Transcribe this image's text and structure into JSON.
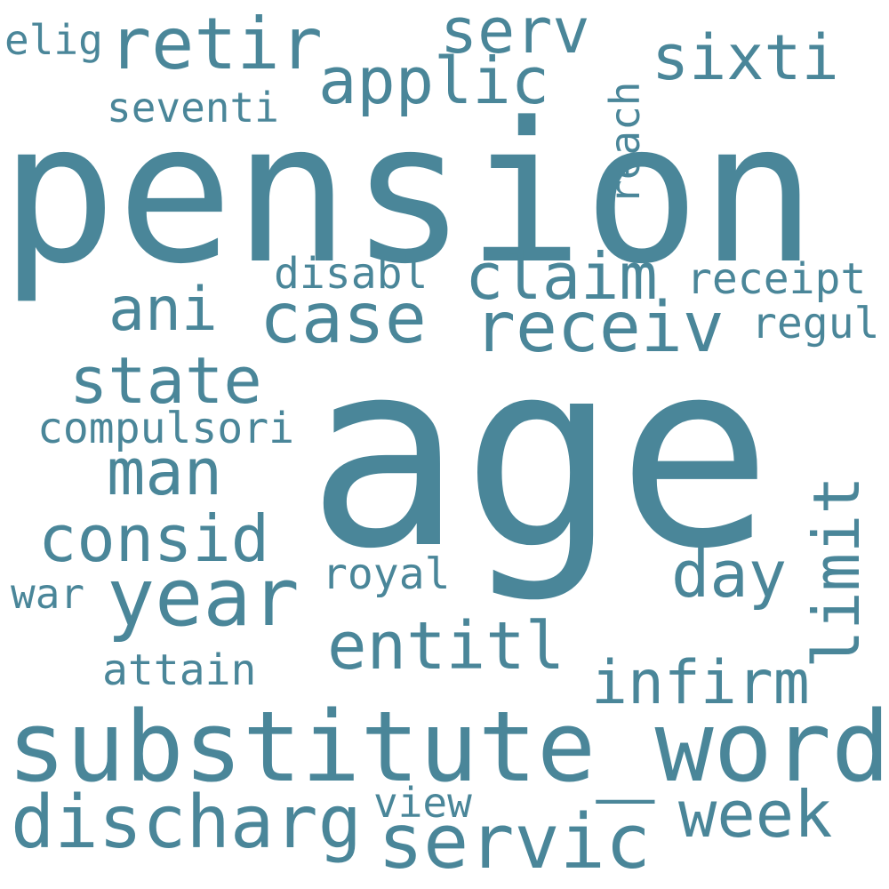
{
  "color": "#4a8699",
  "background": "#ffffff",
  "words": {
    "pension": "pension",
    "age": "age",
    "substitute_word": "substitute_word",
    "year": "year",
    "discharg": "discharg",
    "servic": "servic",
    "retir": "retir",
    "receiv": "receiv",
    "case": "case",
    "applic": "applic",
    "entitl": "entitl",
    "claim": "claim",
    "limit": "limit",
    "state": "state",
    "consid": "consid",
    "man": "man",
    "week": "week",
    "serv": "serv",
    "day": "day",
    "sixti": "sixti",
    "infirm": "infirm",
    "ani": "ani",
    "compulsori": "compulsori",
    "seventi": "seventi",
    "disabl": "disabl",
    "receipt": "receipt",
    "regul": "regul",
    "royal": "royal",
    "attain": "attain",
    "war": "war",
    "view": "view",
    "elig": "elig",
    "reach": "reach"
  }
}
